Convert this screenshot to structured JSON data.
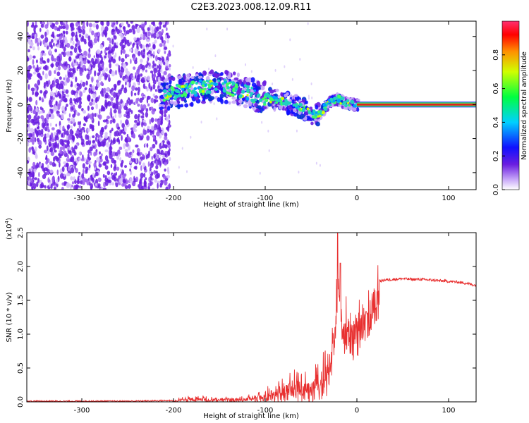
{
  "figure_title": "C2E3.2023.008.12.09.R11",
  "colors": {
    "spectrum_core": "#20d0c0",
    "spectrum_scatter": "#6a1de0",
    "snr_line": "#e83030",
    "baseline": "#e02020"
  },
  "chart_data": [
    {
      "type": "heatmap",
      "title": "C2E3.2023.008.12.09.R11",
      "xlabel": "Height of straight line (km)",
      "ylabel": "Frequency (Hz)",
      "xlim": [
        -360,
        130
      ],
      "ylim": [
        -50,
        49
      ],
      "xticks": [
        -300,
        -200,
        -100,
        0,
        100
      ],
      "yticks": [
        -40,
        -20,
        0,
        20,
        40
      ],
      "colorbar": {
        "label": "Normalized spectral amplitude",
        "range": [
          0.0,
          1.0
        ],
        "ticks": [
          0.0,
          0.2,
          0.4,
          0.6,
          0.8
        ]
      },
      "trace": {
        "noise_region_x": [
          -360,
          -212
        ],
        "ridge_x": [
          -215,
          -190,
          -170,
          -150,
          -130,
          -110,
          -90,
          -75,
          -60,
          -50,
          -42,
          -35,
          -28,
          -20,
          -12,
          -5,
          0,
          130
        ],
        "ridge_freq": [
          6,
          8,
          10,
          11,
          9,
          5,
          3,
          1,
          -2,
          -5,
          -6,
          -2,
          2,
          3,
          1,
          0,
          0,
          0
        ],
        "constant_line_from_x": 0
      }
    },
    {
      "type": "line",
      "xlabel": "Height of straight line (km)",
      "ylabel": "SNR (10 * v/v)",
      "y_multiplier_label": "(x10",
      "y_multiplier_exp": "4",
      "xlim": [
        -360,
        130
      ],
      "ylim": [
        0.0,
        2.5
      ],
      "xticks": [
        -300,
        -200,
        -100,
        0,
        100
      ],
      "yticks": [
        "0.0",
        "0.5",
        "1.0",
        "1.5",
        "2.0",
        "2.5"
      ],
      "series": [
        {
          "name": "SNR",
          "x": [
            -360,
            -250,
            -200,
            -185,
            -150,
            -120,
            -100,
            -90,
            -80,
            -75,
            -70,
            -60,
            -55,
            -50,
            -45,
            -40,
            -35,
            -30,
            -25,
            -22,
            -20,
            -15,
            -10,
            -5,
            0,
            5,
            10,
            15,
            20,
            25,
            30,
            40,
            50,
            60,
            70,
            80,
            90,
            100,
            110,
            120,
            130
          ],
          "values": [
            0.01,
            0.01,
            0.02,
            0.06,
            0.05,
            0.06,
            0.12,
            0.18,
            0.22,
            0.28,
            0.3,
            0.25,
            0.3,
            0.28,
            0.4,
            0.3,
            0.45,
            0.7,
            1.1,
            1.45,
            1.75,
            1.2,
            1.3,
            1.1,
            1.2,
            1.25,
            1.4,
            1.55,
            1.7,
            1.78,
            1.8,
            1.81,
            1.82,
            1.81,
            1.81,
            1.8,
            1.79,
            1.78,
            1.77,
            1.75,
            1.72
          ]
        }
      ],
      "spikes": [
        {
          "x": -21,
          "value": 2.5
        },
        {
          "x": -18,
          "value": 2.05
        }
      ]
    }
  ]
}
